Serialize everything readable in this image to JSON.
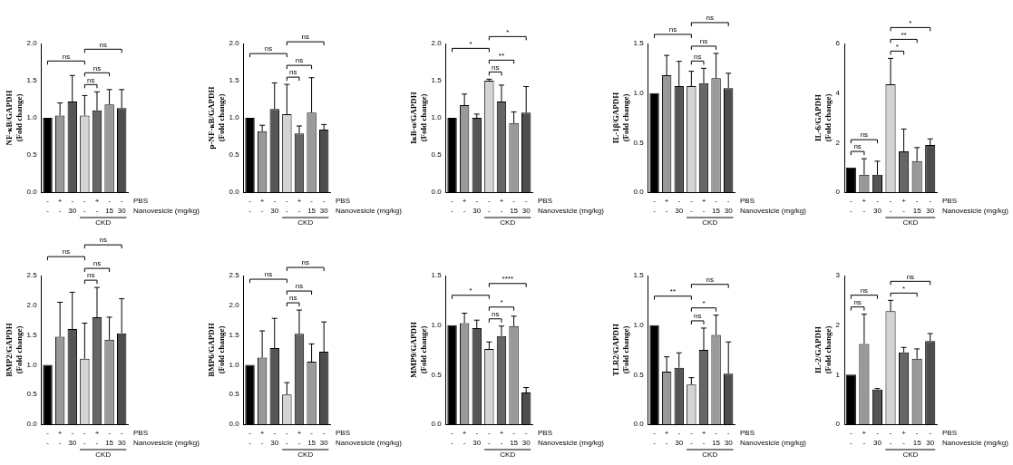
{
  "chart_data": [
    {
      "type": "bar",
      "ylabel": [
        "NF-κB/GAPDH",
        "(Fold change)"
      ],
      "categories": [
        null,
        null,
        null,
        null,
        null,
        null,
        null
      ],
      "values": [
        1.0,
        1.03,
        1.22,
        1.03,
        1.1,
        1.18,
        1.13
      ],
      "errors": [
        0,
        0.17,
        0.35,
        0.27,
        0.25,
        0.2,
        0.25
      ],
      "colors": [
        "#000000",
        "#999999",
        "#555555",
        "#d4d4d4",
        "#666666",
        "#9a9a9a",
        "#4d4d4d"
      ],
      "ylim": [
        0,
        2
      ],
      "yticks": [
        {
          "value": 0,
          "label": "0.0"
        },
        0.5,
        {
          "value": 1,
          "label": "1.0"
        },
        1.5,
        {
          "value": 2,
          "label": "2.0"
        }
      ],
      "grid": false,
      "tick_labels": "y",
      "comparisons": [
        {
          "from": 0,
          "to": 3,
          "label": "ns"
        },
        {
          "from": 3,
          "to": 4,
          "label": "ns"
        },
        {
          "from": 3,
          "to": 5,
          "label": "ns"
        },
        {
          "from": 3,
          "to": 6,
          "label": "ns"
        }
      ],
      "x_rows": [
        {
          "label": "PBS",
          "values": [
            "-",
            "+",
            "-",
            "-",
            "+",
            "-",
            "-"
          ]
        },
        {
          "label": "Nanovesicle (mg/kg)",
          "values": [
            "-",
            "-",
            "30",
            "-",
            "-",
            "15",
            "30"
          ]
        }
      ],
      "group": {
        "label": "CKD",
        "from": 3,
        "to": 6
      }
    },
    {
      "type": "bar",
      "ylabel": [
        "p-NF-κB/GAPDH",
        "(Fold change)"
      ],
      "categories": [
        null,
        null,
        null,
        null,
        null,
        null,
        null
      ],
      "values": [
        1.0,
        0.82,
        1.12,
        1.05,
        0.79,
        1.07,
        0.84
      ],
      "errors": [
        0,
        0.08,
        0.35,
        0.4,
        0.1,
        0.47,
        0.07
      ],
      "colors": [
        "#000000",
        "#999999",
        "#555555",
        "#d4d4d4",
        "#666666",
        "#9a9a9a",
        "#4d4d4d"
      ],
      "ylim": [
        0,
        2
      ],
      "yticks": [
        {
          "value": 0,
          "label": "0.0"
        },
        0.5,
        {
          "value": 1,
          "label": "1.0"
        },
        1.5,
        {
          "value": 2,
          "label": "2.0"
        }
      ],
      "grid": false,
      "tick_labels": "y",
      "comparisons": [
        {
          "from": 0,
          "to": 3,
          "label": "ns"
        },
        {
          "from": 3,
          "to": 4,
          "label": "ns"
        },
        {
          "from": 3,
          "to": 5,
          "label": "ns"
        },
        {
          "from": 3,
          "to": 6,
          "label": "ns"
        }
      ],
      "x_rows": [
        {
          "label": "PBS",
          "values": [
            "-",
            "+",
            "-",
            "-",
            "+",
            "-",
            "-"
          ]
        },
        {
          "label": "Nanovesicle (mg/kg)",
          "values": [
            "-",
            "-",
            "30",
            "-",
            "-",
            "15",
            "30"
          ]
        }
      ],
      "group": {
        "label": "CKD",
        "from": 3,
        "to": 6
      }
    },
    {
      "type": "bar",
      "ylabel": [
        "IκB-α/GAPDH",
        "(Fold change)"
      ],
      "categories": [
        null,
        null,
        null,
        null,
        null,
        null,
        null
      ],
      "values": [
        1.0,
        1.17,
        1.0,
        1.5,
        1.22,
        0.93,
        1.07
      ],
      "errors": [
        0,
        0.15,
        0.05,
        0.02,
        0.22,
        0.15,
        0.35
      ],
      "colors": [
        "#000000",
        "#999999",
        "#555555",
        "#d4d4d4",
        "#666666",
        "#9a9a9a",
        "#4d4d4d"
      ],
      "ylim": [
        0,
        2
      ],
      "yticks": [
        {
          "value": 0,
          "label": "0.0"
        },
        0.5,
        {
          "value": 1,
          "label": "1.0"
        },
        1.5,
        {
          "value": 2,
          "label": "2.0"
        }
      ],
      "grid": false,
      "tick_labels": "y",
      "comparisons": [
        {
          "from": 0,
          "to": 3,
          "label": "*"
        },
        {
          "from": 3,
          "to": 4,
          "label": "ns"
        },
        {
          "from": 3,
          "to": 5,
          "label": "**"
        },
        {
          "from": 3,
          "to": 6,
          "label": "*"
        }
      ],
      "x_rows": [
        {
          "label": "PBS",
          "values": [
            "-",
            "+",
            "-",
            "-",
            "+",
            "-",
            "-"
          ]
        },
        {
          "label": "Nanovesicle (mg/kg)",
          "values": [
            "-",
            "-",
            "30",
            "-",
            "-",
            "15",
            "30"
          ]
        }
      ],
      "group": {
        "label": "CKD",
        "from": 3,
        "to": 6
      }
    },
    {
      "type": "bar",
      "ylabel": [
        "IL-1β/GAPDH",
        "(Fold change)"
      ],
      "categories": [
        null,
        null,
        null,
        null,
        null,
        null,
        null
      ],
      "values": [
        1.0,
        1.18,
        1.07,
        1.07,
        1.1,
        1.15,
        1.05
      ],
      "errors": [
        0,
        0.2,
        0.25,
        0.15,
        0.15,
        0.25,
        0.15
      ],
      "colors": [
        "#000000",
        "#999999",
        "#555555",
        "#d4d4d4",
        "#666666",
        "#9a9a9a",
        "#4d4d4d"
      ],
      "ylim": [
        0,
        1.5
      ],
      "yticks": [
        {
          "value": 0,
          "label": "0.0"
        },
        0.5,
        {
          "value": 1,
          "label": "1.0"
        },
        1.5
      ],
      "grid": false,
      "tick_labels": "y",
      "comparisons": [
        {
          "from": 0,
          "to": 3,
          "label": "ns"
        },
        {
          "from": 3,
          "to": 4,
          "label": "ns"
        },
        {
          "from": 3,
          "to": 5,
          "label": "ns"
        },
        {
          "from": 3,
          "to": 6,
          "label": "ns"
        }
      ],
      "x_rows": [
        {
          "label": "PBS",
          "values": [
            "-",
            "+",
            "-",
            "-",
            "+",
            "-",
            "-"
          ]
        },
        {
          "label": "Nanovesicle (mg/kg)",
          "values": [
            "-",
            "-",
            "30",
            "-",
            "-",
            "15",
            "30"
          ]
        }
      ],
      "group": {
        "label": "CKD",
        "from": 3,
        "to": 6
      }
    },
    {
      "type": "bar",
      "ylabel": [
        "IL-6/GAPDH",
        "(Fold change)"
      ],
      "categories": [
        null,
        null,
        null,
        null,
        null,
        null,
        null
      ],
      "values": [
        1.0,
        0.7,
        0.7,
        4.35,
        1.65,
        1.25,
        1.9
      ],
      "errors": [
        0,
        0.65,
        0.55,
        1.05,
        0.9,
        0.55,
        0.25
      ],
      "colors": [
        "#000000",
        "#999999",
        "#555555",
        "#d4d4d4",
        "#666666",
        "#9a9a9a",
        "#4d4d4d"
      ],
      "ylim": [
        0,
        6
      ],
      "yticks": [
        0,
        2,
        4,
        6
      ],
      "grid": false,
      "tick_labels": "y",
      "comparisons": [
        {
          "from": 0,
          "to": 1,
          "label": "ns"
        },
        {
          "from": 0,
          "to": 2,
          "label": "ns"
        },
        {
          "from": 3,
          "to": 4,
          "label": "*"
        },
        {
          "from": 3,
          "to": 5,
          "label": "**"
        },
        {
          "from": 3,
          "to": 6,
          "label": "*"
        }
      ],
      "x_rows": [
        {
          "label": "PBS",
          "values": [
            "-",
            "+",
            "-",
            "-",
            "+",
            "-",
            "-"
          ]
        },
        {
          "label": "Nanovesicle (mg/kg)",
          "values": [
            "-",
            "-",
            "30",
            "-",
            "-",
            "15",
            "30"
          ]
        }
      ],
      "group": {
        "label": "CKD",
        "from": 3,
        "to": 6
      }
    },
    {
      "type": "bar",
      "ylabel": [
        "BMP2/GAPDH",
        "(Fold change)"
      ],
      "categories": [
        null,
        null,
        null,
        null,
        null,
        null,
        null
      ],
      "values": [
        1.0,
        1.47,
        1.6,
        1.1,
        1.8,
        1.42,
        1.53
      ],
      "errors": [
        0,
        0.58,
        0.62,
        0.6,
        0.5,
        0.38,
        0.58
      ],
      "colors": [
        "#000000",
        "#999999",
        "#555555",
        "#d4d4d4",
        "#666666",
        "#9a9a9a",
        "#4d4d4d"
      ],
      "ylim": [
        0,
        2.5
      ],
      "yticks": [
        {
          "value": 0,
          "label": "0.0"
        },
        0.5,
        {
          "value": 1,
          "label": "1.0"
        },
        1.5,
        {
          "value": 2,
          "label": "2.0"
        },
        2.5
      ],
      "grid": false,
      "tick_labels": "y",
      "comparisons": [
        {
          "from": 0,
          "to": 3,
          "label": "ns"
        },
        {
          "from": 3,
          "to": 4,
          "label": "ns"
        },
        {
          "from": 3,
          "to": 5,
          "label": "ns"
        },
        {
          "from": 3,
          "to": 6,
          "label": "ns"
        }
      ],
      "x_rows": [
        {
          "label": "PBS",
          "values": [
            "-",
            "+",
            "-",
            "-",
            "+",
            "-",
            "-"
          ]
        },
        {
          "label": "Nanovesicle (mg/kg)",
          "values": [
            "-",
            "-",
            "30",
            "-",
            "-",
            "15",
            "30"
          ]
        }
      ],
      "group": {
        "label": "CKD",
        "from": 3,
        "to": 6
      }
    },
    {
      "type": "bar",
      "ylabel": [
        "BMP6/GAPDH",
        "(Fold change)"
      ],
      "categories": [
        null,
        null,
        null,
        null,
        null,
        null,
        null
      ],
      "values": [
        1.0,
        1.12,
        1.28,
        0.5,
        1.52,
        1.05,
        1.22
      ],
      "errors": [
        0,
        0.45,
        0.5,
        0.2,
        0.4,
        0.3,
        0.5
      ],
      "colors": [
        "#000000",
        "#999999",
        "#555555",
        "#d4d4d4",
        "#666666",
        "#9a9a9a",
        "#4d4d4d"
      ],
      "ylim": [
        0,
        2.5
      ],
      "yticks": [
        {
          "value": 0,
          "label": "0.0"
        },
        0.5,
        {
          "value": 1,
          "label": "1.0"
        },
        1.5,
        {
          "value": 2,
          "label": "2.0"
        },
        2.5
      ],
      "grid": false,
      "tick_labels": "y",
      "comparisons": [
        {
          "from": 0,
          "to": 3,
          "label": "ns"
        },
        {
          "from": 3,
          "to": 4,
          "label": "ns"
        },
        {
          "from": 3,
          "to": 5,
          "label": "ns"
        },
        {
          "from": 3,
          "to": 6,
          "label": "ns"
        }
      ],
      "x_rows": [
        {
          "label": "PBS",
          "values": [
            "-",
            "+",
            "-",
            "-",
            "+",
            "-",
            "-"
          ]
        },
        {
          "label": "Nanovesicle (mg/kg)",
          "values": [
            "-",
            "-",
            "30",
            "-",
            "-",
            "15",
            "30"
          ]
        }
      ],
      "group": {
        "label": "CKD",
        "from": 3,
        "to": 6
      }
    },
    {
      "type": "bar",
      "ylabel": [
        "MMP9/GAPDH",
        "(Fold change)"
      ],
      "categories": [
        null,
        null,
        null,
        null,
        null,
        null,
        null
      ],
      "values": [
        1.0,
        1.02,
        0.97,
        0.76,
        0.89,
        0.99,
        0.32
      ],
      "errors": [
        0,
        0.1,
        0.08,
        0.07,
        0.1,
        0.1,
        0.05
      ],
      "colors": [
        "#000000",
        "#999999",
        "#555555",
        "#d4d4d4",
        "#666666",
        "#9a9a9a",
        "#4d4d4d"
      ],
      "ylim": [
        0,
        1.5
      ],
      "yticks": [
        {
          "value": 0,
          "label": "0.0"
        },
        0.5,
        {
          "value": 1,
          "label": "1.0"
        },
        1.5
      ],
      "grid": false,
      "tick_labels": "y",
      "comparisons": [
        {
          "from": 0,
          "to": 3,
          "label": "*"
        },
        {
          "from": 3,
          "to": 4,
          "label": "ns"
        },
        {
          "from": 3,
          "to": 5,
          "label": "*"
        },
        {
          "from": 3,
          "to": 6,
          "label": "****"
        }
      ],
      "x_rows": [
        {
          "label": "PBS",
          "values": [
            "-",
            "+",
            "-",
            "-",
            "+",
            "-",
            "-"
          ]
        },
        {
          "label": "Nanovesicle (mg/kg)",
          "values": [
            "-",
            "-",
            "30",
            "-",
            "-",
            "15",
            "30"
          ]
        }
      ],
      "group": {
        "label": "CKD",
        "from": 3,
        "to": 6
      }
    },
    {
      "type": "bar",
      "ylabel": [
        "TLR2/GAPDH",
        "(Fold change)"
      ],
      "categories": [
        null,
        null,
        null,
        null,
        null,
        null,
        null
      ],
      "values": [
        1.0,
        0.53,
        0.57,
        0.4,
        0.75,
        0.9,
        0.51
      ],
      "errors": [
        0,
        0.15,
        0.15,
        0.07,
        0.22,
        0.2,
        0.32
      ],
      "colors": [
        "#000000",
        "#999999",
        "#555555",
        "#d4d4d4",
        "#666666",
        "#9a9a9a",
        "#4d4d4d"
      ],
      "ylim": [
        0,
        1.5
      ],
      "yticks": [
        {
          "value": 0,
          "label": "0.0"
        },
        0.5,
        {
          "value": 1,
          "label": "1.0"
        },
        1.5
      ],
      "grid": false,
      "tick_labels": "y",
      "comparisons": [
        {
          "from": 0,
          "to": 3,
          "label": "**"
        },
        {
          "from": 3,
          "to": 4,
          "label": "ns"
        },
        {
          "from": 3,
          "to": 5,
          "label": "*"
        },
        {
          "from": 3,
          "to": 6,
          "label": "ns"
        }
      ],
      "x_rows": [
        {
          "label": "PBS",
          "values": [
            "-",
            "+",
            "-",
            "-",
            "+",
            "-",
            "-"
          ]
        },
        {
          "label": "Nanovesicle (mg/kg)",
          "values": [
            "-",
            "-",
            "30",
            "-",
            "-",
            "15",
            "30"
          ]
        }
      ],
      "group": {
        "label": "CKD",
        "from": 3,
        "to": 6
      }
    },
    {
      "type": "bar",
      "ylabel": [
        "IL-2/GAPDH",
        "(Fold change)"
      ],
      "categories": [
        null,
        null,
        null,
        null,
        null,
        null,
        null
      ],
      "values": [
        1.0,
        1.62,
        0.7,
        2.28,
        1.45,
        1.32,
        1.68
      ],
      "errors": [
        0,
        0.6,
        0.02,
        0.22,
        0.1,
        0.2,
        0.15
      ],
      "colors": [
        "#000000",
        "#999999",
        "#555555",
        "#d4d4d4",
        "#666666",
        "#9a9a9a",
        "#4d4d4d"
      ],
      "ylim": [
        0,
        3
      ],
      "yticks": [
        0,
        1,
        2,
        3
      ],
      "grid": false,
      "tick_labels": "y",
      "comparisons": [
        {
          "from": 0,
          "to": 1,
          "label": "ns"
        },
        {
          "from": 0,
          "to": 2,
          "label": "ns"
        },
        {
          "from": 3,
          "to": 5,
          "label": "*"
        },
        {
          "from": 3,
          "to": 6,
          "label": "ns"
        }
      ],
      "x_rows": [
        {
          "label": "PBS",
          "values": [
            "-",
            "+",
            "-",
            "-",
            "+",
            "-",
            "-"
          ]
        },
        {
          "label": "Nanovesicle (mg/kg)",
          "values": [
            "-",
            "-",
            "30",
            "-",
            "-",
            "15",
            "30"
          ]
        }
      ],
      "group": {
        "label": "CKD",
        "from": 3,
        "to": 6
      }
    }
  ]
}
